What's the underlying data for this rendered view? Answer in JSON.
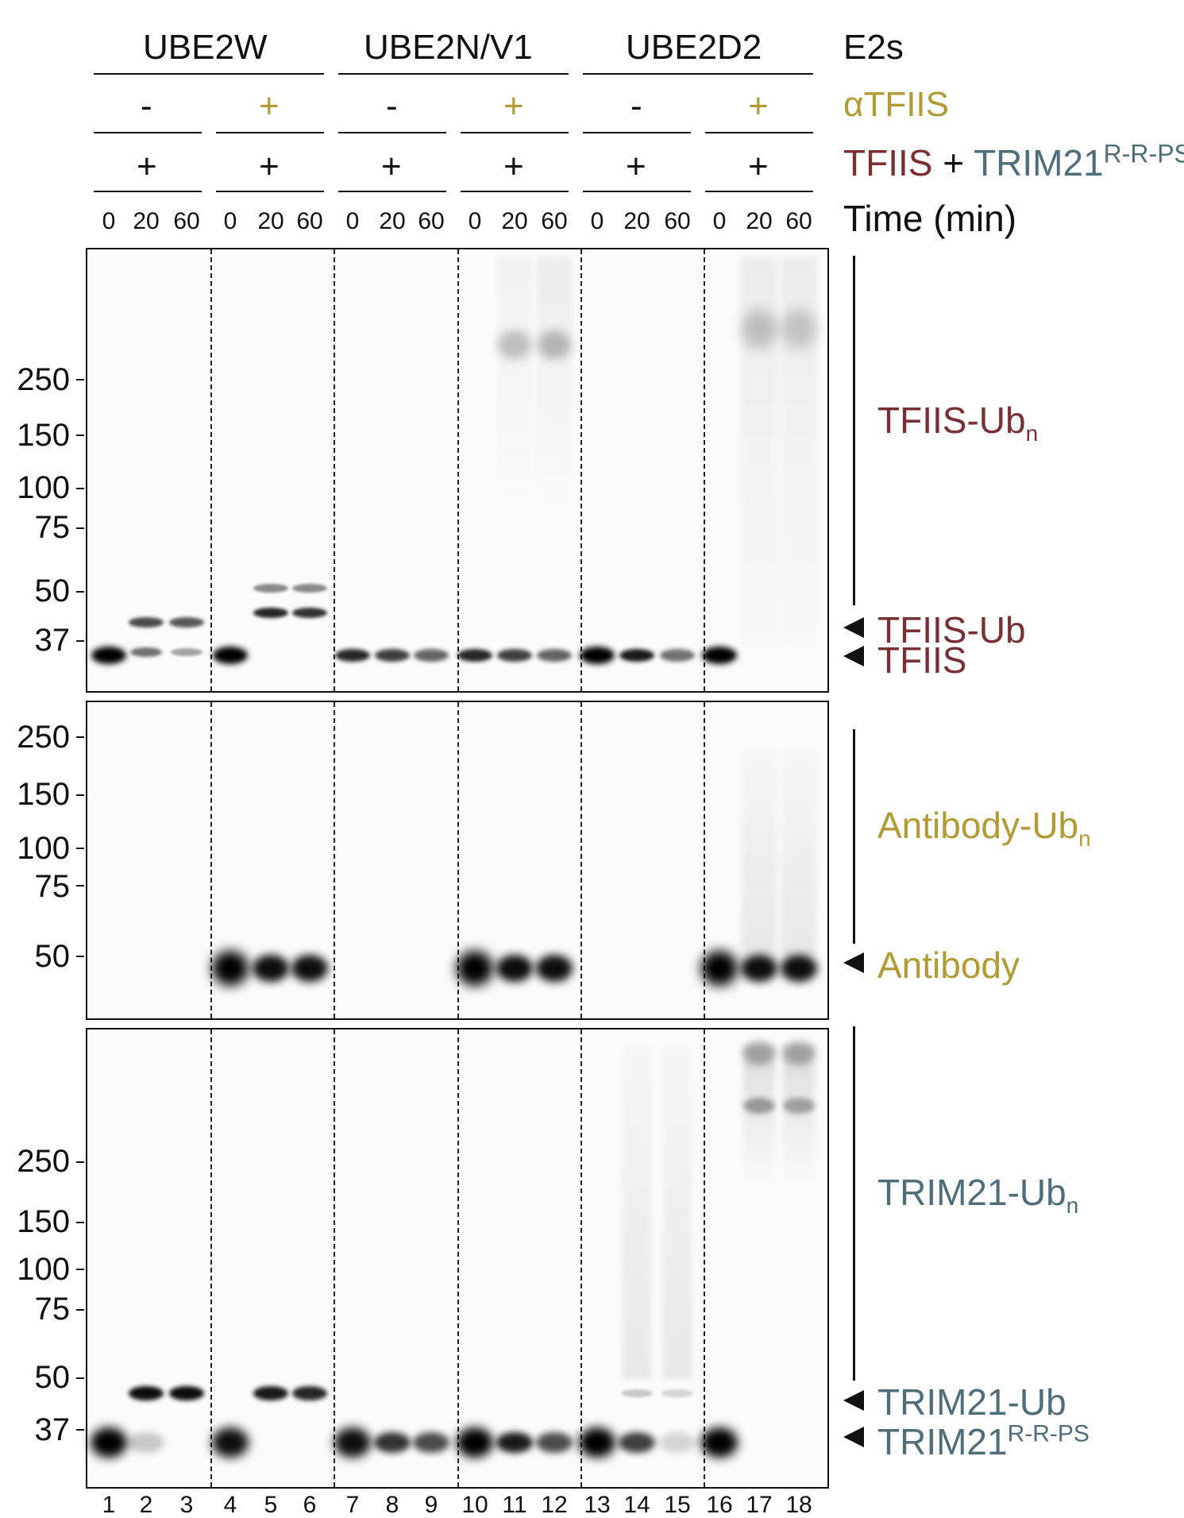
{
  "colors": {
    "tfiis": "#7a2f33",
    "antibody": "#b29b34",
    "trim21": "#4f6e7a",
    "ink": "#111111"
  },
  "header": {
    "e2_groups": [
      "UBE2W",
      "UBE2N/V1",
      "UBE2D2"
    ],
    "e2_label": "E2s",
    "antibody_signs": [
      "-",
      "+",
      "-",
      "+",
      "-",
      "+"
    ],
    "antibody_label": "αTFIIS",
    "substrate_signs": [
      "+",
      "+",
      "+",
      "+",
      "+",
      "+"
    ],
    "substrate_label_a": "TFIIS",
    "substrate_plus": "+",
    "substrate_label_b": "TRIM21",
    "substrate_label_b_sup": "R-R-PS",
    "time_values": [
      "0",
      "20",
      "60",
      "0",
      "20",
      "60",
      "0",
      "20",
      "60",
      "0",
      "20",
      "60",
      "0",
      "20",
      "60",
      "0",
      "20",
      "60"
    ],
    "time_label": "Time (min)"
  },
  "panels": {
    "top": {
      "mw": [
        "250",
        "150",
        "100",
        "75",
        "50",
        "37"
      ],
      "bracket_label": "TFIIS-Ub",
      "bracket_sub": "n",
      "arrow_labels": [
        "TFIIS-Ub",
        "TFIIS"
      ]
    },
    "middle": {
      "mw": [
        "250",
        "150",
        "100",
        "75",
        "50"
      ],
      "bracket_label": "Antibody-Ub",
      "bracket_sub": "n",
      "arrow_labels": [
        "Antibody"
      ]
    },
    "bottom": {
      "mw": [
        "250",
        "150",
        "100",
        "75",
        "50",
        "37"
      ],
      "bracket_label": "TRIM21-Ub",
      "bracket_sub": "n",
      "arrow_labels": [
        "TRIM21-Ub",
        "TRIM21"
      ],
      "arrow_label_sup": "R-R-PS"
    }
  },
  "lane_numbers": [
    "1",
    "2",
    "3",
    "4",
    "5",
    "6",
    "7",
    "8",
    "9",
    "10",
    "11",
    "12",
    "13",
    "14",
    "15",
    "16",
    "17",
    "18"
  ]
}
